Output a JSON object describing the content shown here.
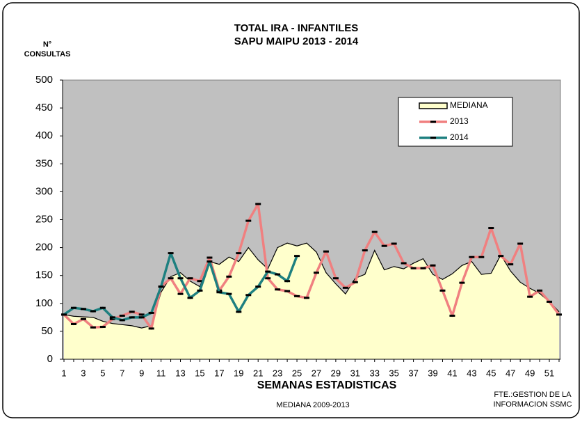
{
  "chart_data": {
    "type": "line",
    "title": "TOTAL IRA - INFANTILES",
    "subtitle": "SAPU MAIPU   2013 - 2014",
    "y_label": [
      "N°",
      "CONSULTAS"
    ],
    "x_label": "SEMANAS ESTADISTICAS",
    "note": "MEDIANA 2009-2013",
    "source": [
      "FTE.:GESTION DE LA",
      "INFORMACION SSMC"
    ],
    "categories": [
      1,
      null,
      3,
      null,
      5,
      null,
      7,
      null,
      9,
      null,
      11,
      null,
      13,
      null,
      15,
      null,
      17,
      null,
      19,
      null,
      21,
      null,
      23,
      null,
      25,
      null,
      27,
      null,
      29,
      null,
      31,
      null,
      33,
      null,
      35,
      null,
      37,
      null,
      39,
      null,
      41,
      null,
      43,
      null,
      45,
      null,
      47,
      null,
      49,
      null,
      51,
      null
    ],
    "ylim": [
      0,
      500
    ],
    "yticks": [
      0,
      50,
      100,
      150,
      200,
      250,
      300,
      350,
      400,
      450,
      500
    ],
    "grid": false,
    "background": "#c0c0c0",
    "legend": "upper right",
    "series": [
      {
        "name": "MEDIANA",
        "kind": "area",
        "color": "#ffffcc",
        "values": [
          80,
          77,
          76,
          75,
          68,
          64,
          62,
          60,
          56,
          60,
          120,
          148,
          155,
          140,
          130,
          175,
          170,
          183,
          175,
          200,
          178,
          162,
          200,
          208,
          203,
          208,
          192,
          155,
          135,
          117,
          145,
          152,
          195,
          160,
          166,
          162,
          172,
          180,
          152,
          143,
          153,
          168,
          175,
          152,
          154,
          187,
          158,
          138,
          127,
          118,
          103,
          85
        ]
      },
      {
        "name": "2013",
        "kind": "line",
        "color": "#f08080",
        "values": [
          80,
          63,
          72,
          57,
          58,
          72,
          78,
          85,
          80,
          55,
          130,
          145,
          117,
          145,
          140,
          182,
          123,
          148,
          190,
          248,
          278,
          145,
          125,
          122,
          113,
          110,
          155,
          193,
          145,
          128,
          138,
          195,
          228,
          203,
          207,
          172,
          163,
          163,
          168,
          123,
          78,
          137,
          183,
          183,
          235,
          185,
          170,
          207,
          112,
          123,
          103,
          80
        ]
      },
      {
        "name": "2014",
        "kind": "line",
        "color": "#1e8080",
        "values": [
          80,
          92,
          90,
          86,
          92,
          75,
          70,
          75,
          75,
          83,
          130,
          190,
          145,
          110,
          123,
          175,
          120,
          117,
          85,
          115,
          130,
          157,
          152,
          140,
          185,
          null,
          null,
          null,
          null,
          null,
          null,
          null,
          null,
          null,
          null,
          null,
          null,
          null,
          null,
          null,
          null,
          null,
          null,
          null,
          null,
          null,
          null,
          null,
          null,
          null,
          null,
          null
        ]
      }
    ]
  }
}
